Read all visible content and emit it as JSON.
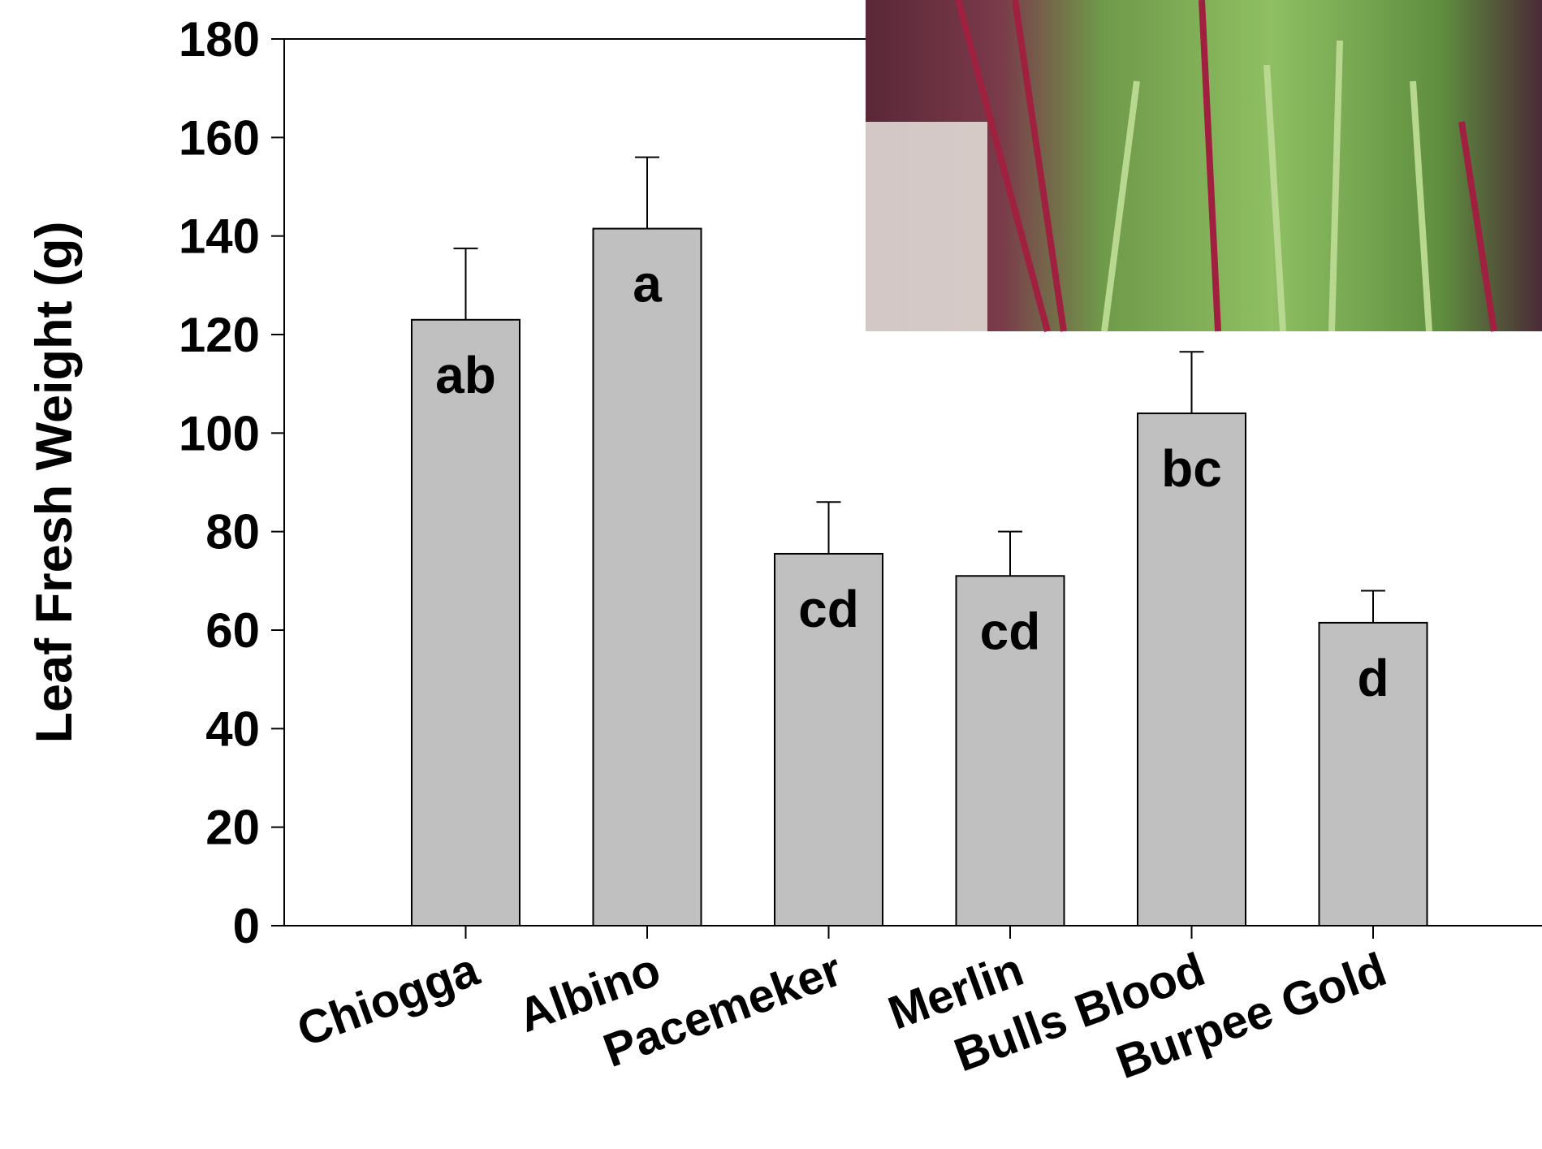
{
  "chart_data": {
    "type": "bar",
    "y_label": "Leaf Fresh Weight (g)",
    "categories": [
      "Chiogga",
      "Albino",
      "Pacemeker",
      "Merlin",
      "Bulls Blood",
      "Burpee Gold"
    ],
    "values": [
      123,
      141.5,
      75.5,
      71,
      104,
      61.5
    ],
    "errors": [
      14.5,
      14.5,
      10.5,
      9,
      12.5,
      6.5
    ],
    "letters": [
      "ab",
      "a",
      "cd",
      "cd",
      "bc",
      "d"
    ],
    "color": "#c0c0c0",
    "ylim": [
      0,
      180
    ],
    "yticks": [
      0,
      20,
      40,
      60,
      80,
      100,
      120,
      140,
      160,
      180
    ]
  }
}
